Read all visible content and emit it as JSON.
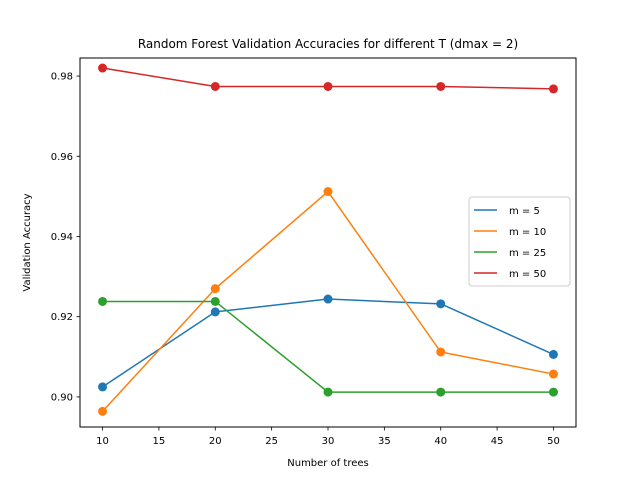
{
  "chart_data": {
    "type": "line",
    "title": "Random Forest Validation Accuracies for different T (dmax = 2)",
    "xlabel": "Number of trees",
    "ylabel": "Validation Accuracy",
    "x": [
      10,
      20,
      30,
      40,
      50
    ],
    "xlim": [
      8,
      52
    ],
    "ylim": [
      0.8925,
      0.9845
    ],
    "xticks": [
      10,
      15,
      20,
      25,
      30,
      35,
      40,
      45,
      50
    ],
    "yticks": [
      0.9,
      0.92,
      0.94,
      0.96,
      0.98
    ],
    "ytick_labels": [
      "0.90",
      "0.92",
      "0.94",
      "0.96",
      "0.98"
    ],
    "grid": false,
    "legend_position": "center-right",
    "markers": "circle",
    "series": [
      {
        "name": "m = 5",
        "color": "#1f77b4",
        "values": [
          0.9025,
          0.9212,
          0.9244,
          0.9232,
          0.9106
        ]
      },
      {
        "name": "m = 10",
        "color": "#ff7f0e",
        "values": [
          0.8964,
          0.927,
          0.9512,
          0.9112,
          0.9057
        ]
      },
      {
        "name": "m = 25",
        "color": "#2ca02c",
        "values": [
          0.9238,
          0.9238,
          0.9012,
          0.9012,
          0.9012
        ]
      },
      {
        "name": "m = 50",
        "color": "#d62728",
        "values": [
          0.982,
          0.9774,
          0.9774,
          0.9774,
          0.9768
        ]
      }
    ]
  }
}
